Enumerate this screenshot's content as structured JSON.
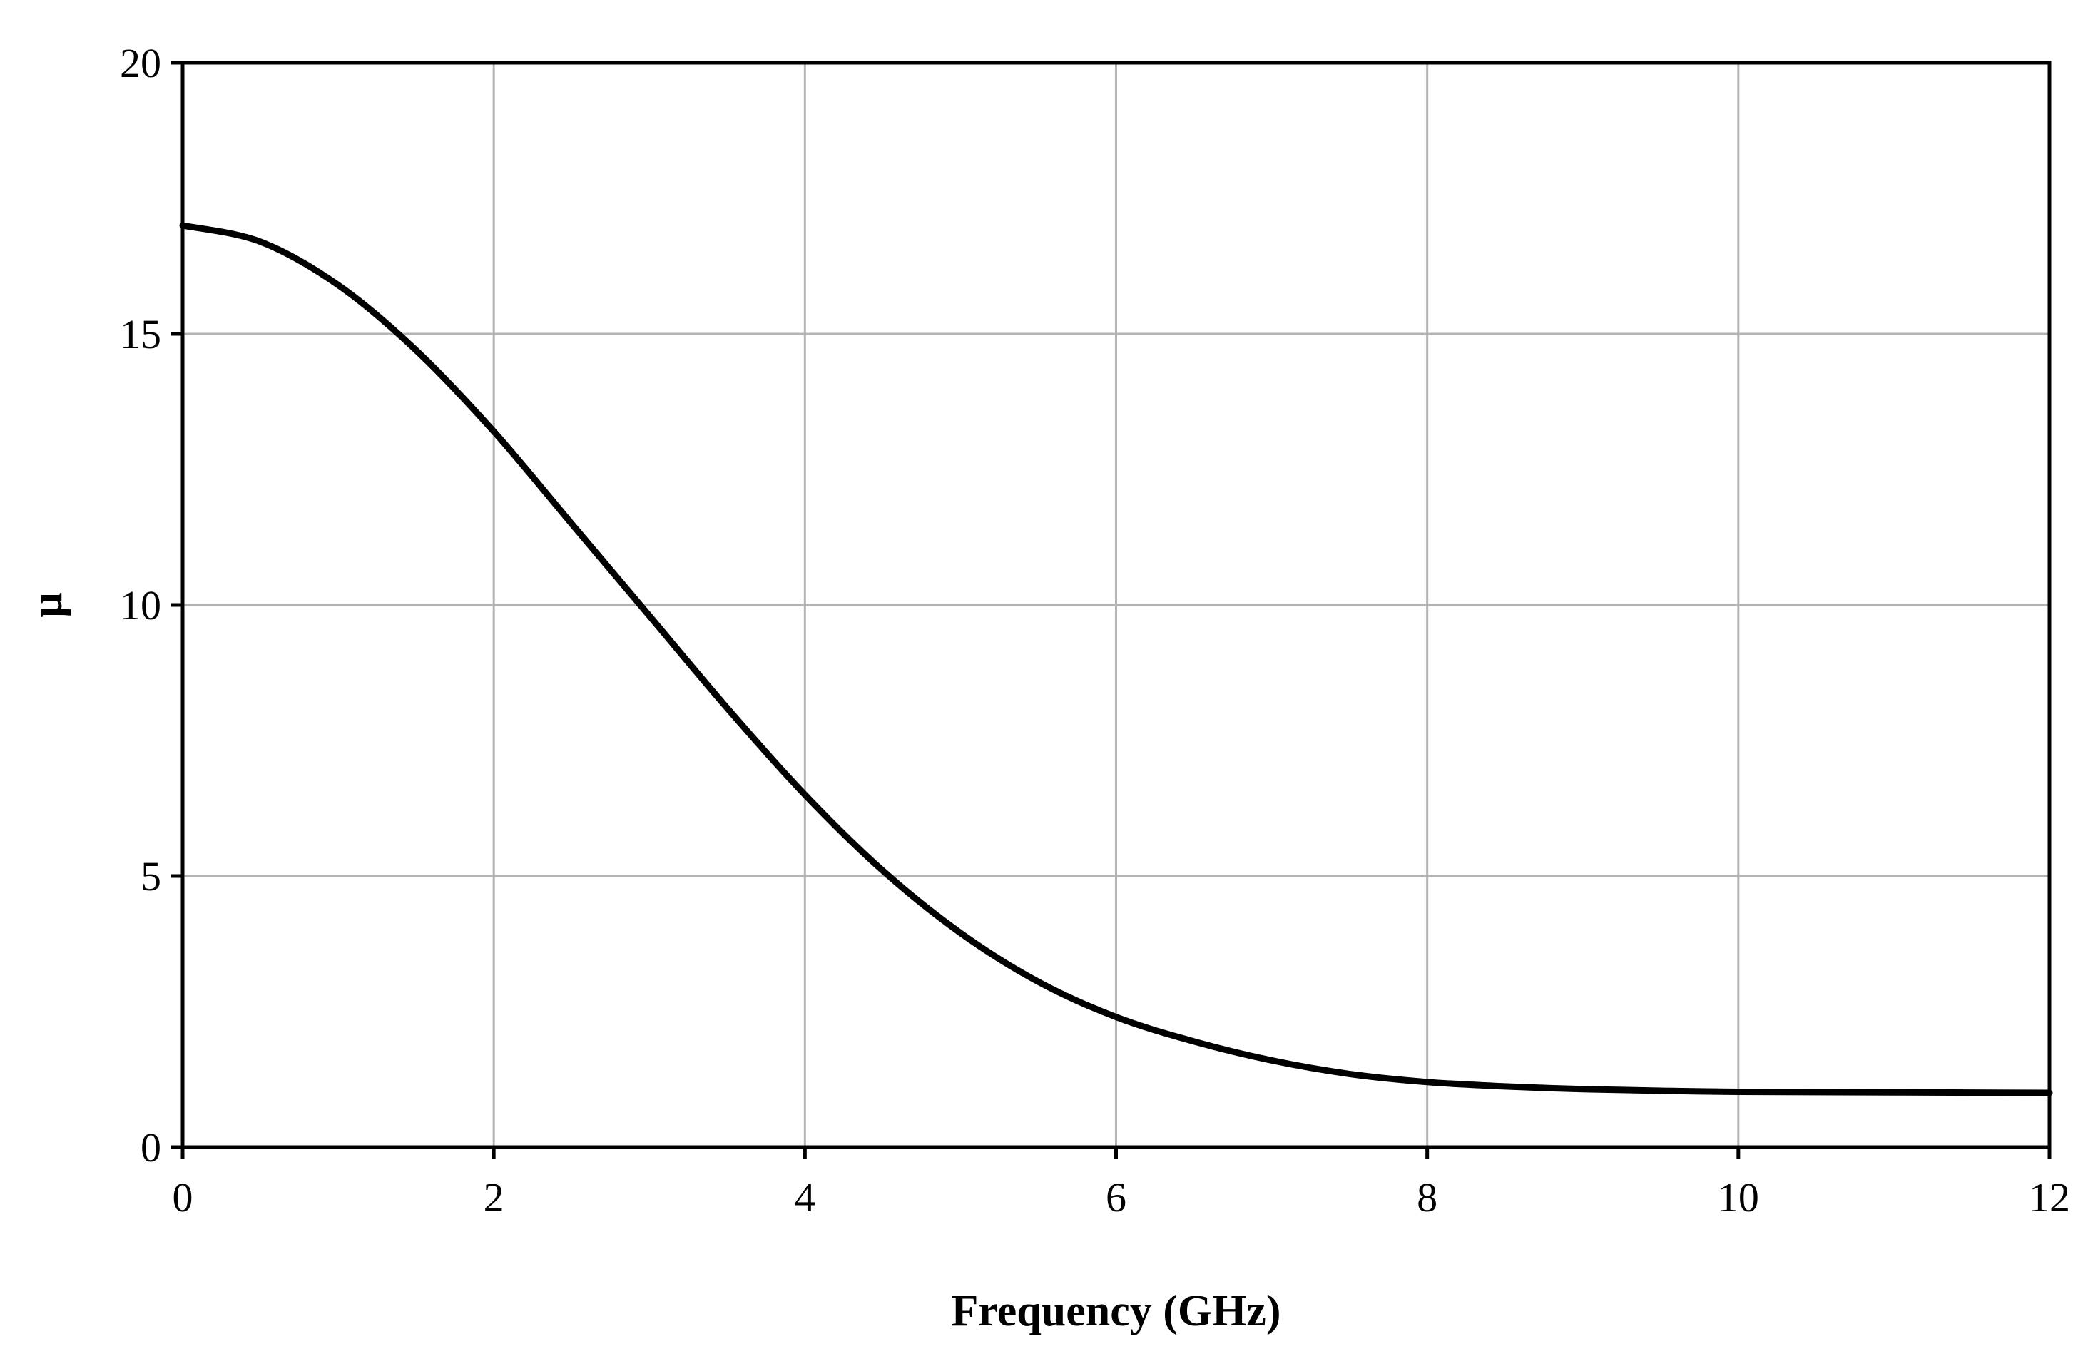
{
  "chart_data": {
    "type": "line",
    "title": "",
    "xlabel": "Frequency (GHz)",
    "ylabel": "μ",
    "xlim": [
      0,
      12
    ],
    "ylim": [
      0,
      20
    ],
    "xticks": [
      0,
      2,
      4,
      6,
      8,
      10,
      12
    ],
    "yticks": [
      0,
      5,
      10,
      15,
      20
    ],
    "x_tick_labels": [
      "0",
      "2",
      "4",
      "6",
      "8",
      "10",
      "12"
    ],
    "y_tick_labels": [
      "0",
      "5",
      "10",
      "15",
      "20"
    ],
    "grid": true,
    "legend": "none",
    "colors": {
      "line": "#000000",
      "grid": "#b4b4b4",
      "frame": "#000000"
    },
    "series": [
      {
        "x": [
          0,
          0.5,
          1,
          1.5,
          2,
          2.5,
          3,
          3.5,
          4,
          4.5,
          5,
          5.5,
          6,
          6.5,
          7,
          7.5,
          8,
          8.5,
          9,
          9.5,
          10,
          11,
          12
        ],
        "y": [
          17.0,
          16.7,
          15.9,
          14.7,
          13.2,
          11.5,
          9.8,
          8.1,
          6.5,
          5.1,
          3.95,
          3.05,
          2.4,
          1.95,
          1.6,
          1.35,
          1.2,
          1.12,
          1.07,
          1.04,
          1.02,
          1.01,
          1.0
        ]
      }
    ]
  }
}
